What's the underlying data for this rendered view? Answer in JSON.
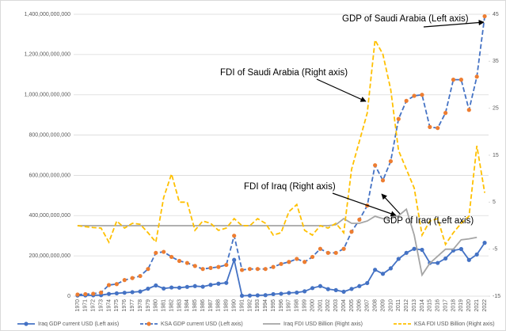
{
  "chart_data": {
    "type": "line",
    "categories": [
      "1970",
      "1971",
      "1972",
      "1973",
      "1974",
      "1975",
      "1976",
      "1977",
      "1978",
      "1979",
      "1980",
      "1981",
      "1982",
      "1983",
      "1984",
      "1985",
      "1986",
      "1987",
      "1988",
      "1989",
      "1990",
      "1991",
      "1992",
      "1993",
      "1994",
      "1995",
      "1996",
      "1997",
      "1998",
      "1999",
      "2000",
      "2001",
      "2002",
      "2003",
      "2004",
      "2005",
      "2006",
      "2007",
      "2008",
      "2009",
      "2010",
      "2011",
      "2012",
      "2013",
      "2014",
      "2015",
      "2016",
      "2017",
      "2018",
      "2019",
      "2020",
      "2021",
      "2022"
    ],
    "series": [
      {
        "name": "Iraq GDP current USD (Left axis)",
        "color": "#4472c4",
        "marker_color": "#4472c4",
        "dash": false,
        "axis": "y",
        "values": [
          3500000000,
          4000000000,
          4500000000,
          5000000000,
          11000000000,
          14000000000,
          17000000000,
          20000000000,
          23000000000,
          37000000000,
          53000000000,
          38000000000,
          43000000000,
          42000000000,
          46000000000,
          50000000000,
          47000000000,
          56000000000,
          62000000000,
          66000000000,
          180000000000,
          2000000000,
          3000000000,
          4000000000,
          5000000000,
          10000000000,
          12000000000,
          16000000000,
          18000000000,
          24000000000,
          40000000000,
          50000000000,
          35000000000,
          30000000000,
          22000000000,
          36000000000,
          50000000000,
          65000000000,
          131000000000,
          111000000000,
          138000000000,
          185000000000,
          215000000000,
          235000000000,
          230000000000,
          165000000000,
          165000000000,
          187000000000,
          227000000000,
          234000000000,
          180000000000,
          207000000000,
          265000000000
        ]
      },
      {
        "name": "KSA GDP current USD (Left axis)",
        "color": "#4472c4",
        "marker_color": "#ed7d31",
        "dash": true,
        "axis": "y",
        "values": [
          8000000000,
          10000000000,
          12000000000,
          18000000000,
          55000000000,
          60000000000,
          80000000000,
          90000000000,
          100000000000,
          135000000000,
          215000000000,
          220000000000,
          195000000000,
          175000000000,
          165000000000,
          150000000000,
          135000000000,
          140000000000,
          145000000000,
          155000000000,
          300000000000,
          130000000000,
          135000000000,
          135000000000,
          135000000000,
          145000000000,
          160000000000,
          170000000000,
          185000000000,
          170000000000,
          195000000000,
          235000000000,
          215000000000,
          215000000000,
          235000000000,
          320000000000,
          380000000000,
          450000000000,
          650000000000,
          575000000000,
          670000000000,
          880000000000,
          970000000000,
          995000000000,
          1000000000000,
          840000000000,
          835000000000,
          910000000000,
          1075000000000,
          1075000000000,
          925000000000,
          1090000000000,
          1390000000000
        ]
      },
      {
        "name": "Iraq FDI USD Billion (Right axis)",
        "color": "#a5a5a5",
        "marker_color": null,
        "dash": false,
        "axis": "y2",
        "values": [
          0,
          0,
          0,
          0,
          0,
          0,
          0,
          0,
          0,
          0,
          0,
          0,
          0,
          0,
          0,
          0,
          0,
          0,
          0,
          0,
          0,
          0,
          0,
          0,
          0,
          0,
          0,
          0,
          0,
          0,
          0,
          0,
          0,
          0.2,
          1.5,
          0.5,
          0.5,
          1,
          2,
          1.5,
          1.5,
          2.1,
          3.5,
          -2,
          -10.5,
          -8,
          -6.5,
          -5,
          -5,
          -3,
          -2.8,
          -2.5,
          null
        ]
      },
      {
        "name": "KSA FDI USD Billion (Right axis)",
        "color": "#ffc000",
        "marker_color": null,
        "dash": true,
        "axis": "y2",
        "values": [
          0,
          -0.2,
          -0.4,
          -0.5,
          -3.5,
          1,
          -0.5,
          0.5,
          0.3,
          -1.5,
          -3.5,
          6,
          11,
          5,
          5,
          -1,
          1,
          0.5,
          -1,
          -0.5,
          1.5,
          0,
          0,
          1.5,
          0.5,
          -2,
          -1.5,
          3,
          4.5,
          -1,
          -2,
          0,
          -0.5,
          0.5,
          -1.5,
          12,
          18,
          24,
          39.5,
          36.5,
          29,
          16,
          12,
          8,
          -2,
          1,
          1.5,
          -4,
          -1.5,
          0.5,
          2,
          17,
          7
        ]
      }
    ],
    "ylim": [
      0,
      1400000000000
    ],
    "yticks": [
      {
        "value": 0,
        "label": "0"
      },
      {
        "value": 200000000000,
        "label": "200,000,000,000"
      },
      {
        "value": 400000000000,
        "label": "400,000,000,000"
      },
      {
        "value": 600000000000,
        "label": "600,000,000,000"
      },
      {
        "value": 800000000000,
        "label": "800,000,000,000"
      },
      {
        "value": 1000000000000,
        "label": "1,000,000,000,000"
      },
      {
        "value": 1200000000000,
        "label": "1,200,000,000,000"
      },
      {
        "value": 1400000000000,
        "label": "1,400,000,000,000"
      }
    ],
    "y2lim": [
      -15,
      45
    ],
    "y2ticks": [
      -15,
      -5,
      5,
      15,
      25,
      35,
      45
    ],
    "grid": true,
    "legend": "bottom",
    "annotations": [
      "GDP of Saudi Arabia (Left axis)",
      "FDI of Saudi Arabia (Right axis)",
      "FDI of Iraq (Right axis)",
      "GDP of Iraq (Left axis)"
    ]
  }
}
